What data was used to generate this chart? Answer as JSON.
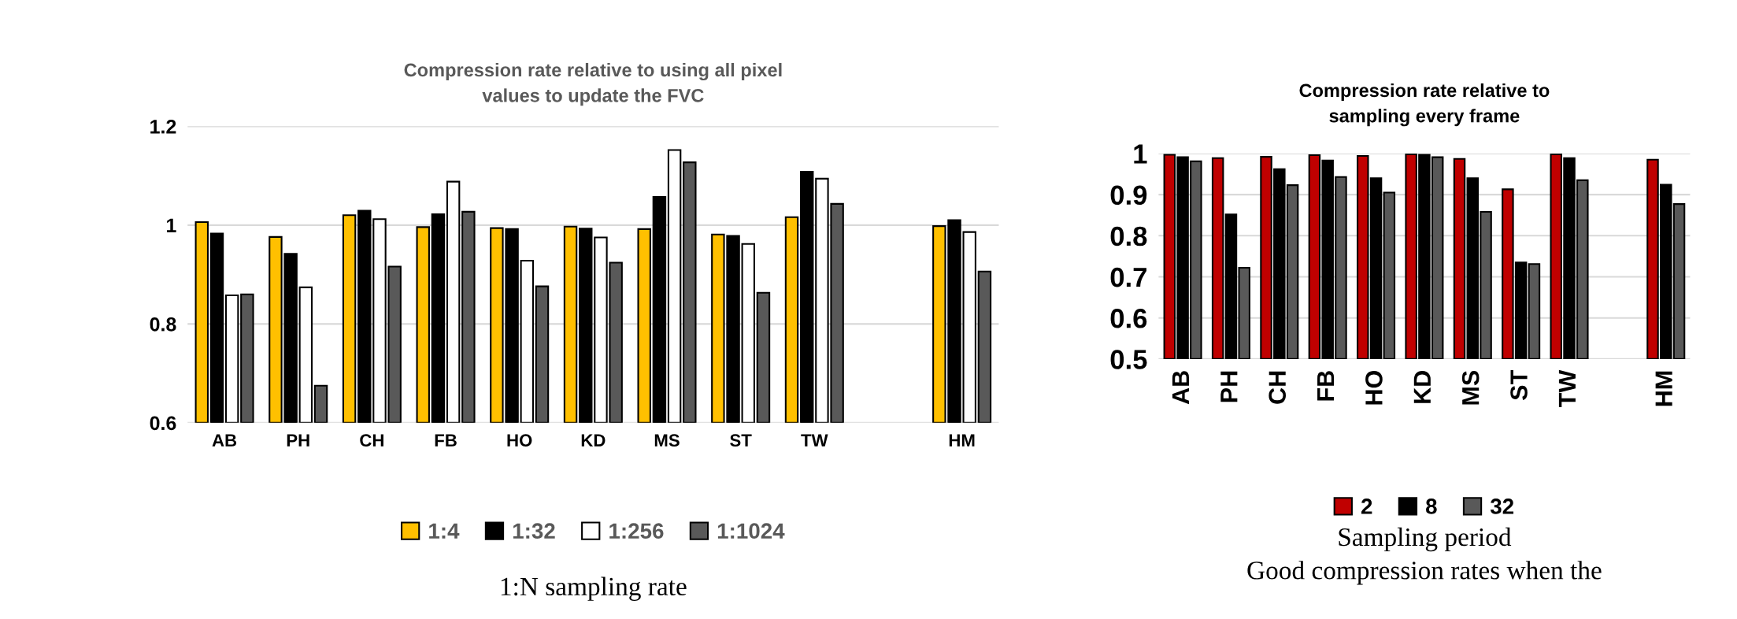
{
  "chart_data": [
    {
      "type": "bar",
      "title": "Compression rate relative to using all pixel\nvalues to update the FVC",
      "xlabel": "1:N sampling rate",
      "categories": [
        "AB",
        "PH",
        "CH",
        "FB",
        "HO",
        "KD",
        "MS",
        "ST",
        "TW",
        null,
        "HM"
      ],
      "series": [
        {
          "name": "1:4",
          "color": "#ffc000",
          "values": [
            1.006,
            0.976,
            1.02,
            0.996,
            0.994,
            0.997,
            0.992,
            0.981,
            1.016,
            null,
            0.998
          ]
        },
        {
          "name": "1:32",
          "color": "#000000",
          "values": [
            0.983,
            0.942,
            1.029,
            1.022,
            0.992,
            0.993,
            1.057,
            0.978,
            1.108,
            null,
            1.01
          ]
        },
        {
          "name": "1:256",
          "color": "#ffffff",
          "values": [
            0.858,
            0.874,
            1.012,
            1.088,
            0.928,
            0.975,
            1.152,
            0.962,
            1.094,
            null,
            0.986
          ]
        },
        {
          "name": "1:1024",
          "color": "#595959",
          "values": [
            0.86,
            0.675,
            0.916,
            1.027,
            0.876,
            0.924,
            1.127,
            0.863,
            1.043,
            null,
            0.906
          ]
        }
      ],
      "ylim": [
        0.6,
        1.2
      ],
      "yticks": [
        0.6,
        0.8,
        1,
        1.2
      ],
      "grid": "y",
      "legend": "bottom"
    },
    {
      "type": "bar",
      "title": "Compression rate relative to\nsampling every frame",
      "xlabel": "Sampling period",
      "categories": [
        "AB",
        "PH",
        "CH",
        "FB",
        "HO",
        "KD",
        "MS",
        "ST",
        "TW",
        null,
        "HM"
      ],
      "series": [
        {
          "name": "2",
          "color": "#c00000",
          "values": [
            0.997,
            0.989,
            0.992,
            0.996,
            0.994,
            0.998,
            0.987,
            0.913,
            0.998,
            null,
            0.985
          ]
        },
        {
          "name": "8",
          "color": "#000000",
          "values": [
            0.991,
            0.852,
            0.962,
            0.983,
            0.94,
            0.997,
            0.94,
            0.735,
            0.989,
            null,
            0.924
          ]
        },
        {
          "name": "32",
          "color": "#595959",
          "values": [
            0.981,
            0.722,
            0.923,
            0.943,
            0.905,
            0.991,
            0.858,
            0.731,
            0.935,
            null,
            0.877
          ]
        }
      ],
      "ylim": [
        0.5,
        1
      ],
      "yticks": [
        0.5,
        0.6,
        0.7,
        0.8,
        0.9,
        1
      ],
      "grid": "y",
      "legend": "bottom",
      "annotations": [
        "Good compression rates when the"
      ]
    }
  ]
}
